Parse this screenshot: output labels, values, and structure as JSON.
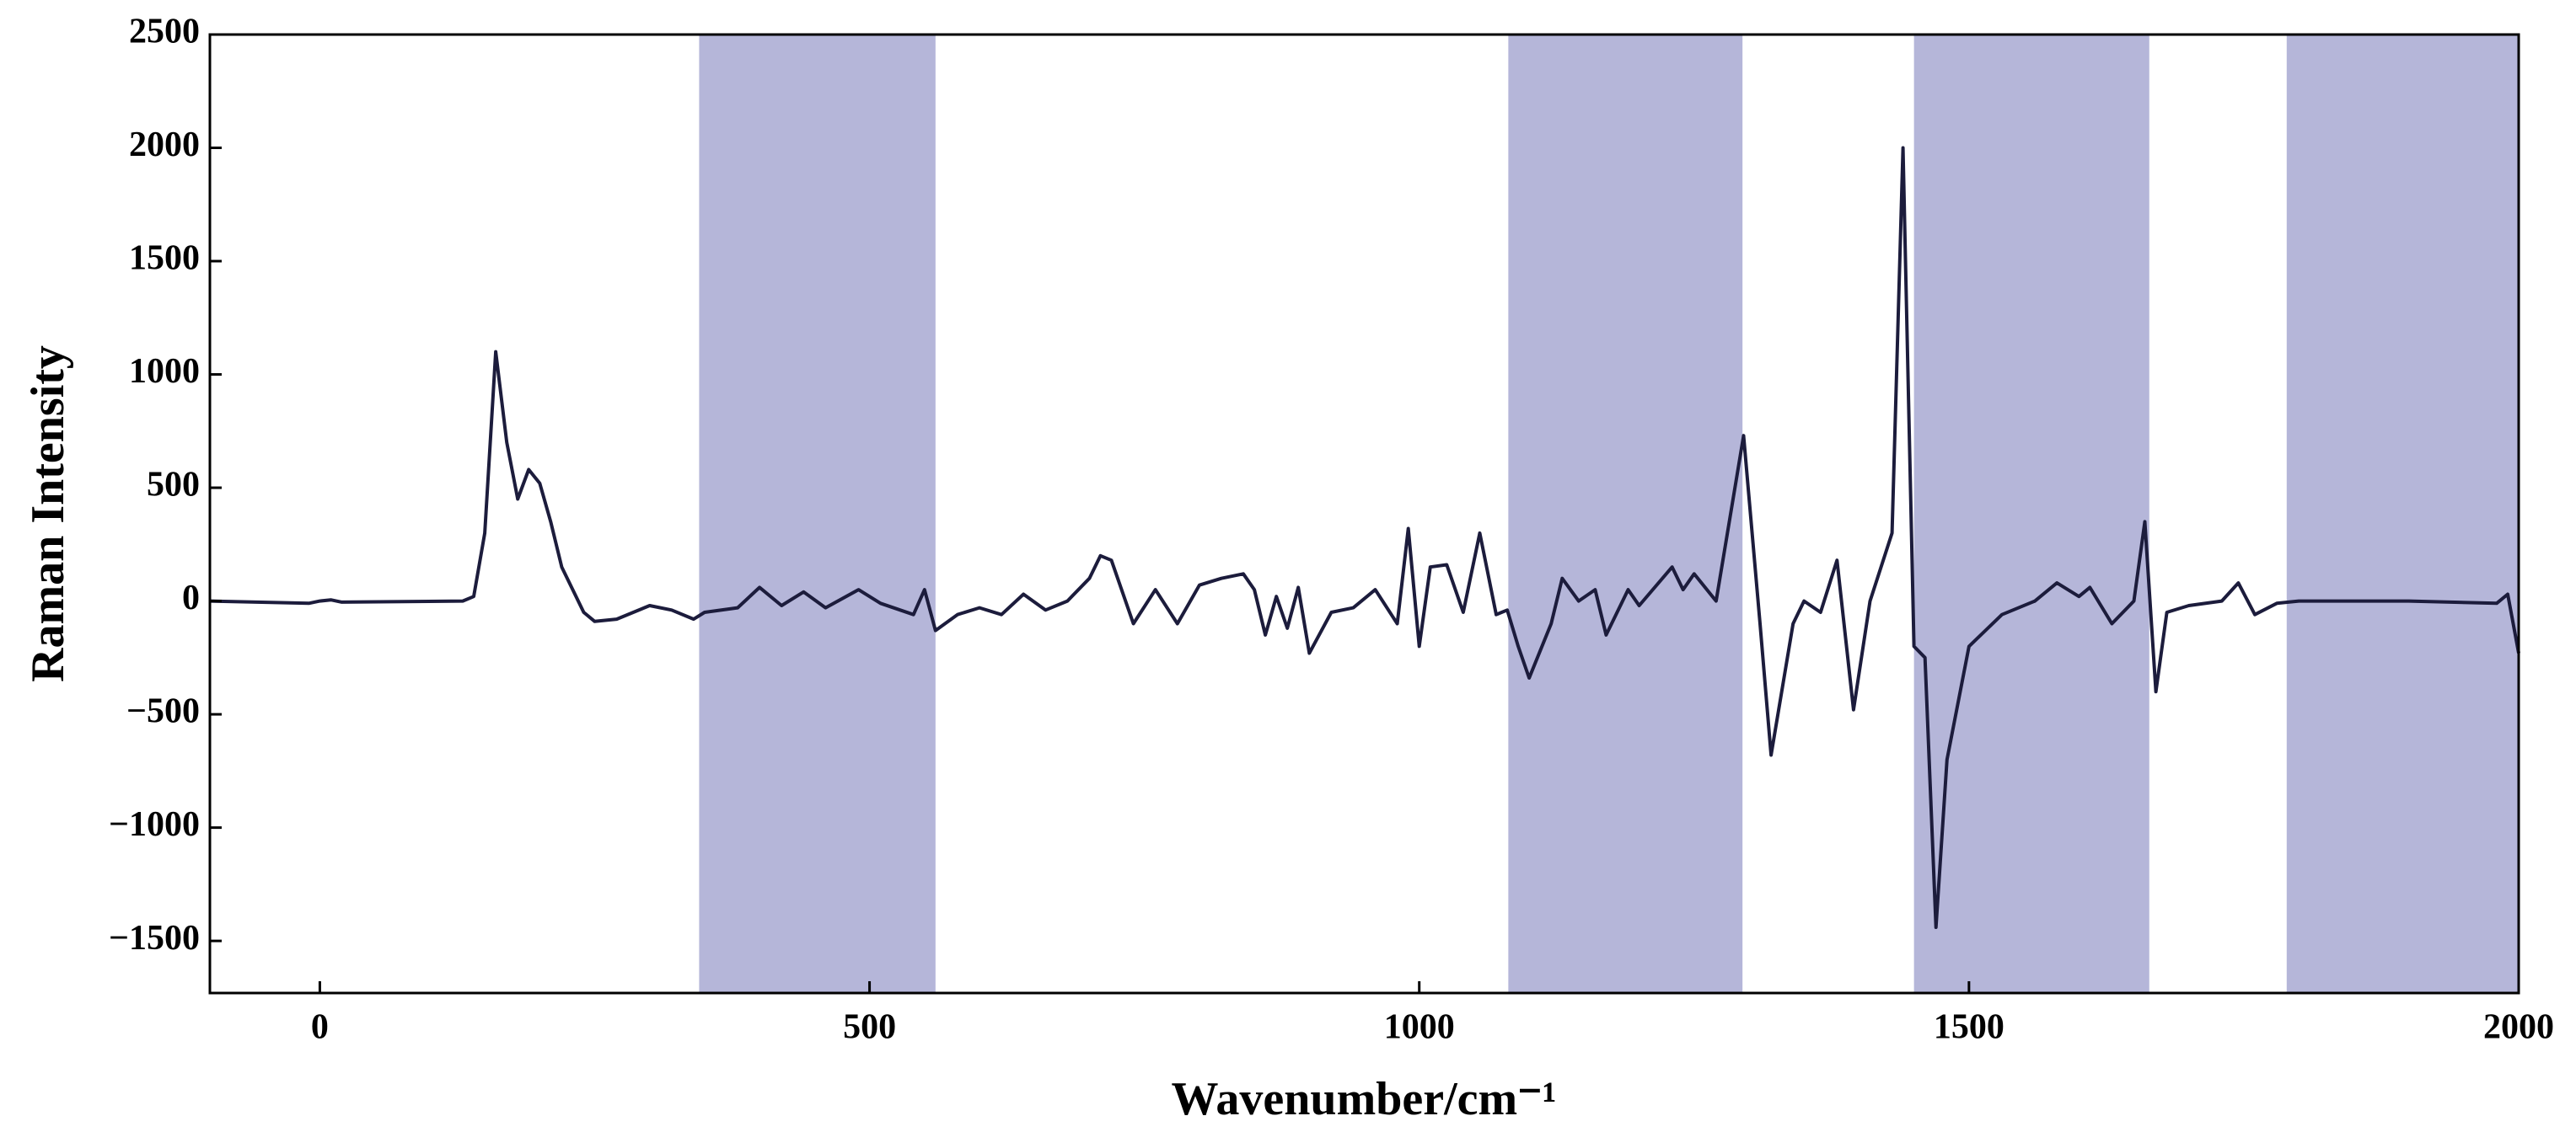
{
  "chart_data": {
    "type": "line",
    "xlabel": "Wavenumber/cm⁻¹",
    "ylabel": "Raman Intensity",
    "x": [
      -100,
      -10,
      0,
      10,
      20,
      130,
      140,
      150,
      160,
      170,
      180,
      190,
      200,
      210,
      220,
      240,
      250,
      270,
      300,
      320,
      340,
      350,
      380,
      400,
      420,
      440,
      460,
      490,
      510,
      540,
      550,
      560,
      580,
      600,
      620,
      640,
      660,
      680,
      700,
      710,
      720,
      740,
      760,
      780,
      800,
      820,
      840,
      850,
      860,
      870,
      880,
      890,
      900,
      920,
      940,
      960,
      980,
      990,
      1000,
      1010,
      1025,
      1040,
      1055,
      1070,
      1080,
      1090,
      1100,
      1120,
      1130,
      1145,
      1160,
      1170,
      1190,
      1200,
      1230,
      1240,
      1250,
      1270,
      1295,
      1310,
      1320,
      1340,
      1350,
      1365,
      1380,
      1395,
      1410,
      1430,
      1440,
      1450,
      1460,
      1470,
      1480,
      1500,
      1530,
      1560,
      1580,
      1600,
      1610,
      1630,
      1650,
      1660,
      1670,
      1680,
      1700,
      1730,
      1745,
      1760,
      1780,
      1800,
      1900,
      1980,
      1990,
      2000
    ],
    "values": [
      0,
      -10,
      0,
      5,
      -5,
      0,
      20,
      300,
      1100,
      700,
      450,
      580,
      520,
      350,
      150,
      -50,
      -90,
      -80,
      -20,
      -40,
      -80,
      -50,
      -30,
      60,
      -20,
      40,
      -30,
      50,
      -10,
      -60,
      50,
      -130,
      -60,
      -30,
      -60,
      30,
      -40,
      0,
      100,
      200,
      180,
      -100,
      50,
      -100,
      70,
      100,
      120,
      50,
      -150,
      20,
      -120,
      60,
      -230,
      -50,
      -30,
      50,
      -100,
      320,
      -200,
      150,
      160,
      -50,
      300,
      -60,
      -40,
      -200,
      -340,
      -100,
      100,
      0,
      50,
      -150,
      50,
      -20,
      150,
      50,
      120,
      0,
      730,
      -100,
      -680,
      -100,
      0,
      -50,
      180,
      -480,
      0,
      300,
      2000,
      -200,
      -250,
      -1440,
      -700,
      -200,
      -60,
      0,
      80,
      20,
      60,
      -100,
      0,
      350,
      -400,
      -50,
      -20,
      0,
      80,
      -60,
      -10,
      0,
      0,
      -10,
      30,
      -230
    ],
    "color": "#1c1c3c",
    "bands": [
      [
        345,
        560
      ],
      [
        1081,
        1294
      ],
      [
        1450,
        1664
      ],
      [
        1789,
        2000
      ]
    ],
    "band_color": "#b5b6d9",
    "xlim": [
      -100,
      2000
    ],
    "ylim": [
      -1730,
      2500
    ],
    "xticks": [
      0,
      500,
      1000,
      1500,
      2000
    ],
    "yticks": [
      {
        "value": -1500,
        "label": "−1500"
      },
      {
        "value": -1000,
        "label": "−1000"
      },
      {
        "value": -500,
        "label": "−500"
      },
      0,
      500,
      1000,
      1500,
      2000,
      2500
    ]
  }
}
